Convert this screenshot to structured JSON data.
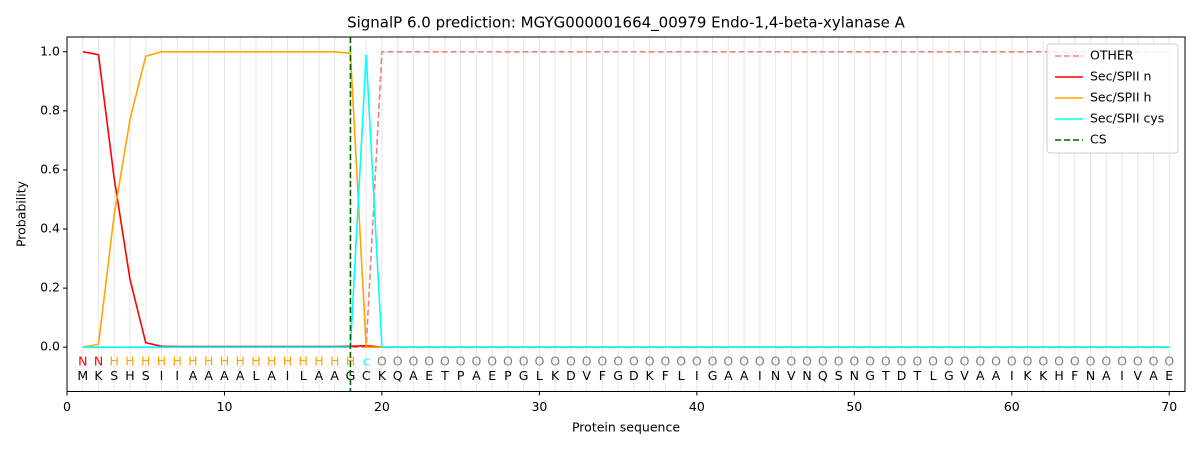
{
  "chart_data": {
    "type": "line",
    "title": "SignalP 6.0 prediction: MGYG000001664_00979 Endo-1,4-beta-xylanase A",
    "xlabel": "Protein sequence",
    "ylabel": "Probability",
    "xlim": [
      0,
      71
    ],
    "ylim": [
      -0.15,
      1.05
    ],
    "xticks": [
      0,
      10,
      20,
      30,
      40,
      50,
      60,
      70
    ],
    "yticks": [
      {
        "value": 0,
        "label": "0.0"
      },
      {
        "value": 0.2,
        "label": "0.2"
      },
      {
        "value": 0.4,
        "label": "0.4"
      },
      {
        "value": 0.6,
        "label": "0.6"
      },
      {
        "value": 0.8,
        "label": "0.8"
      },
      {
        "value": 1,
        "label": "1.0"
      }
    ],
    "x": [
      1,
      2,
      3,
      4,
      5,
      6,
      7,
      8,
      9,
      10,
      11,
      12,
      13,
      14,
      15,
      16,
      17,
      18,
      19,
      20,
      21,
      22,
      23,
      24,
      25,
      26,
      27,
      28,
      29,
      30,
      31,
      32,
      33,
      34,
      35,
      36,
      37,
      38,
      39,
      40,
      41,
      42,
      43,
      44,
      45,
      46,
      47,
      48,
      49,
      50,
      51,
      52,
      53,
      54,
      55,
      56,
      57,
      58,
      59,
      60,
      61,
      62,
      63,
      64,
      65,
      66,
      67,
      68,
      69,
      70
    ],
    "sequence": [
      "M",
      "K",
      "S",
      "H",
      "S",
      "I",
      "I",
      "A",
      "A",
      "A",
      "A",
      "L",
      "A",
      "I",
      "L",
      "A",
      "A",
      "G",
      "C",
      "K",
      "Q",
      "A",
      "E",
      "T",
      "P",
      "A",
      "E",
      "P",
      "G",
      "L",
      "K",
      "D",
      "V",
      "F",
      "G",
      "D",
      "K",
      "F",
      "L",
      "I",
      "G",
      "A",
      "A",
      "I",
      "N",
      "V",
      "N",
      "Q",
      "S",
      "N",
      "G",
      "T",
      "D",
      "T",
      "L",
      "G",
      "V",
      "A",
      "A",
      "I",
      "K",
      "K",
      "H",
      "F",
      "N",
      "A",
      "I",
      "V",
      "A",
      "E"
    ],
    "labels": [
      "N",
      "N",
      "H",
      "H",
      "H",
      "H",
      "H",
      "H",
      "H",
      "H",
      "H",
      "H",
      "H",
      "H",
      "H",
      "H",
      "H",
      "H",
      "c",
      "O",
      "O",
      "O",
      "O",
      "O",
      "O",
      "O",
      "O",
      "O",
      "O",
      "O",
      "O",
      "O",
      "O",
      "O",
      "O",
      "O",
      "O",
      "O",
      "O",
      "O",
      "O",
      "O",
      "O",
      "O",
      "O",
      "O",
      "O",
      "O",
      "O",
      "O",
      "O",
      "O",
      "O",
      "O",
      "O",
      "O",
      "O",
      "O",
      "O",
      "O",
      "O",
      "O",
      "O",
      "O",
      "O",
      "O",
      "O",
      "O",
      "O",
      "O"
    ],
    "label_colors": {
      "N": "red",
      "H": "orange",
      "c": "cyan",
      "O": "grey"
    },
    "series": [
      {
        "name": "OTHER",
        "color": "#f08080",
        "linestyle": "dashed",
        "values": [
          0,
          0,
          0,
          0,
          0,
          0,
          0,
          0,
          0,
          0,
          0,
          0,
          0,
          0,
          0,
          0,
          0,
          0,
          0,
          1,
          1,
          1,
          1,
          1,
          1,
          1,
          1,
          1,
          1,
          1,
          1,
          1,
          1,
          1,
          1,
          1,
          1,
          1,
          1,
          1,
          1,
          1,
          1,
          1,
          1,
          1,
          1,
          1,
          1,
          1,
          1,
          1,
          1,
          1,
          1,
          1,
          1,
          1,
          1,
          1,
          1,
          1,
          1,
          1,
          1,
          1,
          1,
          1,
          1,
          1
        ]
      },
      {
        "name": "Sec/SPII n",
        "color": "red",
        "linestyle": "solid",
        "values": [
          1.0,
          0.99,
          0.57,
          0.23,
          0.015,
          0.003,
          0.002,
          0.002,
          0.002,
          0.002,
          0.002,
          0.002,
          0.002,
          0.002,
          0.002,
          0.002,
          0.002,
          0.003,
          0.005,
          0,
          0,
          0,
          0,
          0,
          0,
          0,
          0,
          0,
          0,
          0,
          0,
          0,
          0,
          0,
          0,
          0,
          0,
          0,
          0,
          0,
          0,
          0,
          0,
          0,
          0,
          0,
          0,
          0,
          0,
          0,
          0,
          0,
          0,
          0,
          0,
          0,
          0,
          0,
          0,
          0,
          0,
          0,
          0,
          0,
          0,
          0,
          0,
          0,
          0,
          0
        ]
      },
      {
        "name": "Sec/SPII h",
        "color": "orange",
        "linestyle": "solid",
        "values": [
          0,
          0.01,
          0.45,
          0.77,
          0.985,
          1,
          1,
          1,
          1,
          1,
          1,
          1,
          1,
          1,
          1,
          1,
          1,
          0.995,
          0,
          0,
          0,
          0,
          0,
          0,
          0,
          0,
          0,
          0,
          0,
          0,
          0,
          0,
          0,
          0,
          0,
          0,
          0,
          0,
          0,
          0,
          0,
          0,
          0,
          0,
          0,
          0,
          0,
          0,
          0,
          0,
          0,
          0,
          0,
          0,
          0,
          0,
          0,
          0,
          0,
          0,
          0,
          0,
          0,
          0,
          0,
          0,
          0,
          0,
          0,
          0
        ]
      },
      {
        "name": "Sec/SPII cys",
        "color": "cyan",
        "linestyle": "solid",
        "values": [
          0,
          0,
          0,
          0,
          0,
          0,
          0,
          0,
          0,
          0,
          0,
          0,
          0,
          0,
          0,
          0,
          0,
          0,
          0.99,
          0,
          0,
          0,
          0,
          0,
          0,
          0,
          0,
          0,
          0,
          0,
          0,
          0,
          0,
          0,
          0,
          0,
          0,
          0,
          0,
          0,
          0,
          0,
          0,
          0,
          0,
          0,
          0,
          0,
          0,
          0,
          0,
          0,
          0,
          0,
          0,
          0,
          0,
          0,
          0,
          0,
          0,
          0,
          0,
          0,
          0,
          0,
          0,
          0,
          0,
          0
        ]
      }
    ],
    "cs": {
      "name": "CS",
      "color": "darkgreen",
      "x": 18
    }
  }
}
